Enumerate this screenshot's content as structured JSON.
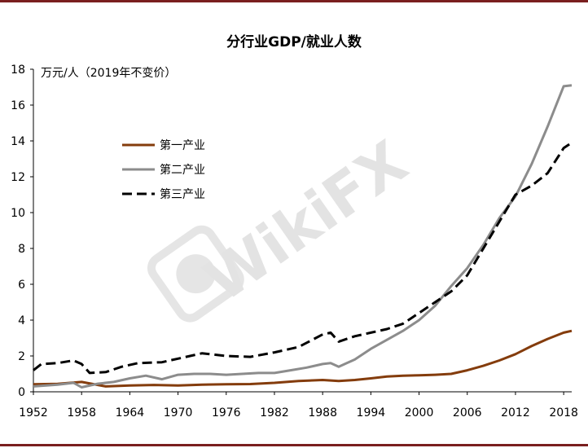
{
  "chart_data": {
    "type": "line",
    "title": "分行业GDP/就业人数",
    "ylabel": "万元/人（2019年不变价）",
    "ylim": [
      0,
      18
    ],
    "yticks": [
      0,
      2,
      4,
      6,
      8,
      10,
      12,
      14,
      16,
      18
    ],
    "xlim": [
      1952,
      2019
    ],
    "xticks": [
      1952,
      1958,
      1964,
      1970,
      1976,
      1982,
      1988,
      1994,
      2000,
      2006,
      2012,
      2018
    ],
    "legend_position": "upper-left",
    "grid": false,
    "series": [
      {
        "name": "第一产业",
        "color": "#843c0c",
        "dash": "solid",
        "x": [
          1952,
          1955,
          1958,
          1961,
          1964,
          1967,
          1970,
          1973,
          1976,
          1979,
          1982,
          1985,
          1988,
          1990,
          1992,
          1994,
          1996,
          1998,
          2000,
          2002,
          2004,
          2006,
          2008,
          2010,
          2012,
          2014,
          2016,
          2018,
          2019
        ],
        "y": [
          0.42,
          0.44,
          0.55,
          0.3,
          0.35,
          0.38,
          0.35,
          0.4,
          0.42,
          0.43,
          0.5,
          0.6,
          0.66,
          0.6,
          0.66,
          0.75,
          0.85,
          0.9,
          0.92,
          0.95,
          1.0,
          1.2,
          1.45,
          1.75,
          2.1,
          2.55,
          2.95,
          3.3,
          3.4
        ]
      },
      {
        "name": "第二产业",
        "color": "#8c8c8c",
        "dash": "solid",
        "x": [
          1952,
          1955,
          1957,
          1958,
          1960,
          1962,
          1964,
          1966,
          1968,
          1970,
          1972,
          1974,
          1976,
          1978,
          1980,
          1982,
          1984,
          1986,
          1988,
          1989,
          1990,
          1991,
          1992,
          1994,
          1996,
          1998,
          2000,
          2002,
          2004,
          2006,
          2008,
          2010,
          2012,
          2014,
          2016,
          2018,
          2019
        ],
        "y": [
          0.3,
          0.4,
          0.5,
          0.25,
          0.45,
          0.55,
          0.75,
          0.9,
          0.7,
          0.95,
          1.0,
          1.0,
          0.95,
          1.0,
          1.05,
          1.05,
          1.2,
          1.35,
          1.55,
          1.6,
          1.4,
          1.6,
          1.8,
          2.4,
          2.9,
          3.4,
          4.0,
          4.8,
          5.9,
          6.9,
          8.2,
          9.7,
          10.9,
          12.7,
          14.8,
          17.05,
          17.1
        ]
      },
      {
        "name": "第三产业",
        "color": "#000000",
        "dash": "dashed",
        "x": [
          1952,
          1953,
          1955,
          1957,
          1958,
          1959,
          1961,
          1963,
          1965,
          1968,
          1970,
          1973,
          1976,
          1979,
          1982,
          1985,
          1988,
          1989,
          1990,
          1992,
          1994,
          1996,
          1998,
          2000,
          2002,
          2004,
          2006,
          2008,
          2010,
          2012,
          2014,
          2016,
          2018,
          2019
        ],
        "y": [
          1.2,
          1.55,
          1.6,
          1.75,
          1.55,
          1.05,
          1.1,
          1.4,
          1.6,
          1.65,
          1.85,
          2.15,
          2.0,
          1.95,
          2.2,
          2.5,
          3.2,
          3.3,
          2.8,
          3.1,
          3.3,
          3.5,
          3.8,
          4.4,
          5.0,
          5.6,
          6.5,
          8.0,
          9.5,
          11.0,
          11.5,
          12.2,
          13.6,
          13.9
        ]
      }
    ]
  }
}
